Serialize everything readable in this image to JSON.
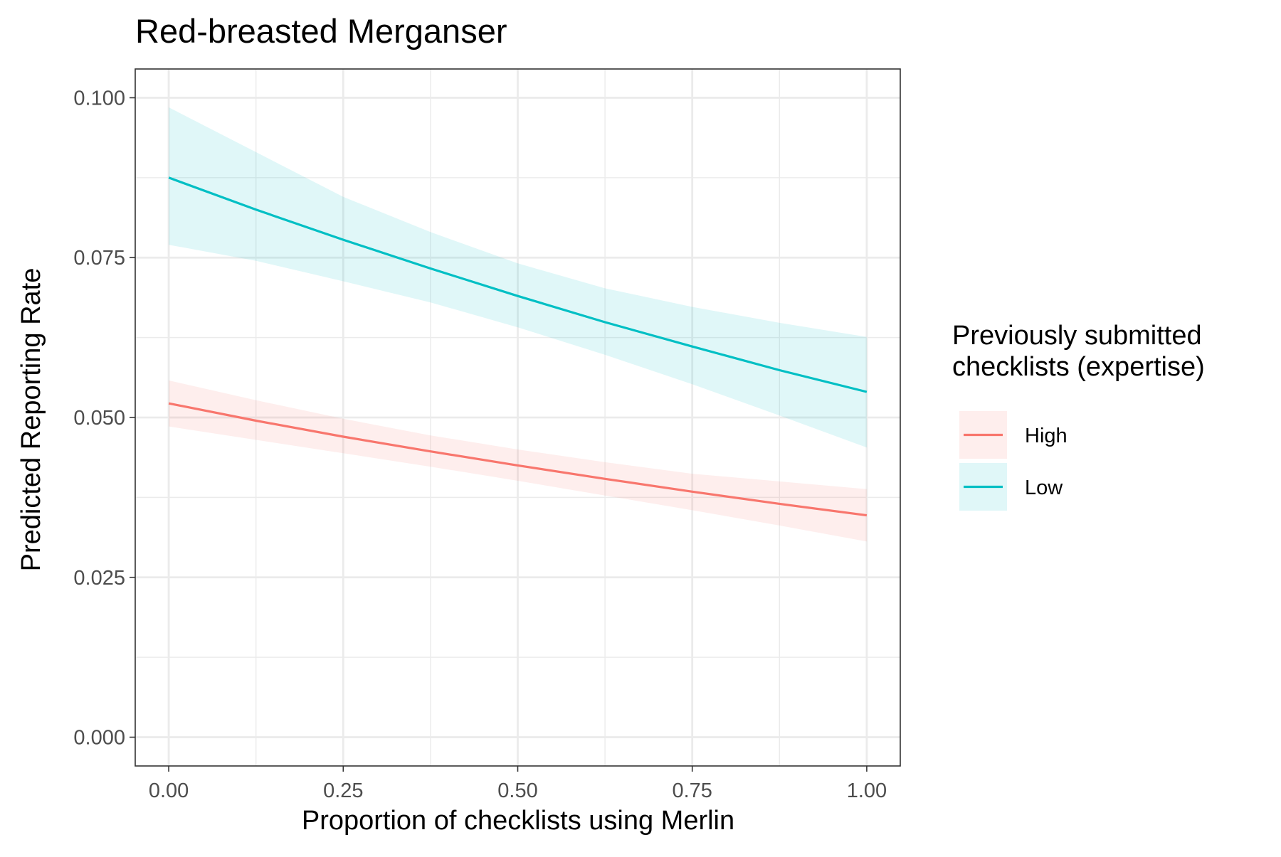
{
  "chart_data": {
    "type": "line",
    "title": "Red-breasted Merganser",
    "xlabel": "Proportion of checklists using Merlin",
    "ylabel": "Predicted Reporting Rate",
    "xlim": [
      -0.048,
      1.048
    ],
    "ylim": [
      -0.0045,
      0.1045
    ],
    "x_ticks": [
      0.0,
      0.25,
      0.5,
      0.75,
      1.0
    ],
    "x_tick_labels": [
      "0.00",
      "0.25",
      "0.50",
      "0.75",
      "1.00"
    ],
    "y_ticks": [
      0.0,
      0.025,
      0.05,
      0.075,
      0.1
    ],
    "y_tick_labels": [
      "0.000",
      "0.025",
      "0.050",
      "0.075",
      "0.100"
    ],
    "x_minor_ticks": [
      0.125,
      0.375,
      0.625,
      0.875
    ],
    "y_minor_ticks": [
      0.0125,
      0.0375,
      0.0625,
      0.0875
    ],
    "grid": true,
    "legend": {
      "title_lines": [
        "Previously submitted",
        "checklists (expertise)"
      ],
      "position": "right"
    },
    "x": [
      0.0,
      0.125,
      0.25,
      0.375,
      0.5,
      0.625,
      0.75,
      0.875,
      1.0
    ],
    "series": [
      {
        "name": "High",
        "color": "#F8766D",
        "values": [
          0.0522,
          0.0495,
          0.047,
          0.0447,
          0.0425,
          0.0404,
          0.0384,
          0.0365,
          0.0347
        ],
        "lower": [
          0.0486,
          0.0465,
          0.0444,
          0.0423,
          0.0401,
          0.0378,
          0.0355,
          0.0331,
          0.0306
        ],
        "upper": [
          0.0558,
          0.0527,
          0.0498,
          0.0472,
          0.045,
          0.043,
          0.0412,
          0.04,
          0.0388
        ]
      },
      {
        "name": "Low",
        "color": "#00BFC4",
        "values": [
          0.0875,
          0.0825,
          0.0778,
          0.0733,
          0.069,
          0.0649,
          0.0611,
          0.0574,
          0.054
        ],
        "lower": [
          0.077,
          0.0745,
          0.0713,
          0.068,
          0.0641,
          0.0598,
          0.0552,
          0.0503,
          0.0453
        ],
        "upper": [
          0.0985,
          0.0915,
          0.0845,
          0.079,
          0.0741,
          0.0702,
          0.0673,
          0.0648,
          0.0626
        ]
      }
    ]
  }
}
